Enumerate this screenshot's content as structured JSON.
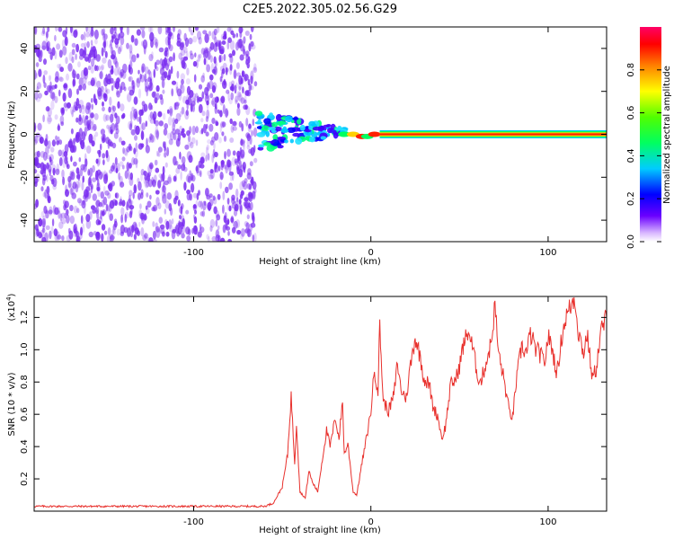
{
  "title": "C2E5.2022.305.02.56.G29",
  "colors": {
    "noise": "#7a2cf0",
    "snr_line": "#e8302c",
    "colorbar_stops": [
      "#d400ff",
      "#6a00ff",
      "#0000ff",
      "#00e0ff",
      "#00ff40",
      "#a0ff00",
      "#ffff00",
      "#ff8000",
      "#ff0000",
      "#ff0066"
    ]
  },
  "chart_data": [
    {
      "type": "heatmap",
      "title": "C2E5.2022.305.02.56.G29",
      "xlabel": "Height of straight line (km)",
      "ylabel": "Frequency (Hz)",
      "xlim": [
        -190,
        133
      ],
      "ylim": [
        -50,
        50
      ],
      "x_ticks": [
        -100,
        0,
        100
      ],
      "x_tick_labels": [
        "-100",
        "0",
        "100"
      ],
      "y_ticks": [
        -40,
        -20,
        0,
        20,
        40
      ],
      "y_tick_labels": [
        "-40",
        "-20",
        "0",
        "20",
        "40"
      ],
      "colorbar": {
        "label": "Normalized spectral amplitude",
        "range": [
          0,
          1
        ],
        "ticks": [
          0.0,
          0.2,
          0.4,
          0.6,
          0.8
        ],
        "tick_labels": [
          "0.0",
          "0.2",
          "0.4",
          "0.6",
          "0.8"
        ]
      },
      "regions": {
        "noise_x": [
          -190,
          -65
        ],
        "transition_x": [
          -65,
          -15
        ],
        "signal_start_x": 5,
        "signal_frequency": 0
      }
    },
    {
      "type": "line",
      "xlabel": "Height of straight line (km)",
      "ylabel": "SNR (10 * v/v)",
      "y_scale_label": "(x10",
      "y_scale_exp": "4",
      "y_scale_close": ")",
      "xlim": [
        -190,
        133
      ],
      "ylim": [
        0,
        1.33
      ],
      "x_ticks": [
        -100,
        0,
        100
      ],
      "x_tick_labels": [
        "-100",
        "0",
        "100"
      ],
      "y_ticks": [
        0.2,
        0.4,
        0.6,
        0.8,
        1.0,
        1.2
      ],
      "y_tick_labels": [
        "0.2",
        "0.4",
        "0.6",
        "0.8",
        "1.0",
        "1.2"
      ],
      "series": [
        {
          "x": [
            -190,
            -170,
            -150,
            -130,
            -110,
            -90,
            -70,
            -60,
            -55,
            -50,
            -47,
            -45,
            -43,
            -42,
            -40,
            -37,
            -35,
            -33,
            -30,
            -27,
            -25,
            -23,
            -20,
            -18,
            -16,
            -15,
            -13,
            -10,
            -8,
            -5,
            -3,
            0,
            2,
            4,
            5,
            7,
            10,
            13,
            15,
            17,
            20,
            22,
            25,
            28,
            30,
            33,
            35,
            38,
            40,
            42,
            45,
            48,
            50,
            52,
            55,
            58,
            60,
            62,
            65,
            68,
            70,
            72,
            75,
            78,
            80,
            82,
            85,
            88,
            90,
            93,
            95,
            98,
            100,
            102,
            105,
            108,
            110,
            112,
            115,
            117,
            120,
            122,
            125,
            127,
            130,
            133
          ],
          "y": [
            0.03,
            0.03,
            0.03,
            0.03,
            0.03,
            0.03,
            0.03,
            0.03,
            0.05,
            0.15,
            0.35,
            0.72,
            0.3,
            0.55,
            0.12,
            0.08,
            0.25,
            0.18,
            0.12,
            0.35,
            0.5,
            0.4,
            0.58,
            0.45,
            0.68,
            0.35,
            0.42,
            0.12,
            0.1,
            0.3,
            0.42,
            0.62,
            0.88,
            0.75,
            1.15,
            0.68,
            0.62,
            0.72,
            0.92,
            0.75,
            0.7,
            0.88,
            1.08,
            0.95,
            0.82,
            0.78,
            0.65,
            0.58,
            0.45,
            0.52,
            0.78,
            0.82,
            0.9,
            1.02,
            1.12,
            0.98,
            0.85,
            0.8,
            0.92,
            1.05,
            1.28,
            0.98,
            0.82,
            0.62,
            0.58,
            0.8,
            1.02,
            0.98,
            1.1,
            1.0,
            0.98,
            0.92,
            1.08,
            1.02,
            0.85,
            1.1,
            1.2,
            1.25,
            1.33,
            1.12,
            0.98,
            1.1,
            0.82,
            0.88,
            1.12,
            1.2
          ]
        }
      ]
    }
  ]
}
